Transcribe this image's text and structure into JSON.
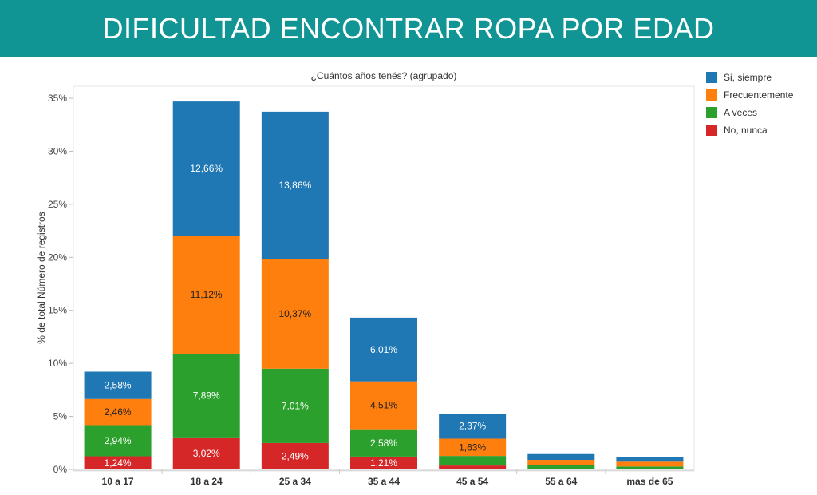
{
  "header": {
    "title": "DIFICULTAD ENCONTRAR ROPA POR EDAD"
  },
  "chart_data": {
    "type": "bar",
    "stacked": true,
    "title": "¿Cuántos años tenés? (agrupado)",
    "ylabel": "% de total Número de registros",
    "xlabel": "",
    "ylim": [
      0,
      35
    ],
    "yticks": [
      "0%",
      "5%",
      "10%",
      "15%",
      "20%",
      "25%",
      "30%",
      "35%"
    ],
    "categories": [
      "10 a 17",
      "18 a 24",
      "25 a 34",
      "35 a 44",
      "45 a 54",
      "55 a 64",
      "mas de 65"
    ],
    "series": [
      {
        "name": "No, nunca",
        "color": "#d62728",
        "values": [
          1.24,
          3.02,
          2.49,
          1.21,
          0.37,
          0.05,
          0.03
        ],
        "labels": [
          "1,24%",
          "3,02%",
          "2,49%",
          "1,21%",
          "",
          "",
          ""
        ]
      },
      {
        "name": "A veces",
        "color": "#2ca02c",
        "values": [
          2.94,
          7.89,
          7.01,
          2.58,
          0.9,
          0.35,
          0.25
        ],
        "labels": [
          "2,94%",
          "7,89%",
          "7,01%",
          "2,58%",
          "",
          "",
          ""
        ]
      },
      {
        "name": "Frecuentemente",
        "color": "#ff7f0e",
        "values": [
          2.46,
          11.12,
          10.37,
          4.51,
          1.63,
          0.5,
          0.45
        ],
        "labels": [
          "2,46%",
          "11,12%",
          "10,37%",
          "4,51%",
          "1,63%",
          "",
          ""
        ]
      },
      {
        "name": "Si, siempre",
        "color": "#1f77b4",
        "values": [
          2.58,
          12.66,
          13.86,
          6.01,
          2.37,
          0.55,
          0.4
        ],
        "labels": [
          "2,58%",
          "12,66%",
          "13,86%",
          "6,01%",
          "2,37%",
          "",
          ""
        ]
      }
    ],
    "legend_position": "right",
    "legend_order": [
      "Si, siempre",
      "Frecuentemente",
      "A veces",
      "No, nunca"
    ]
  }
}
